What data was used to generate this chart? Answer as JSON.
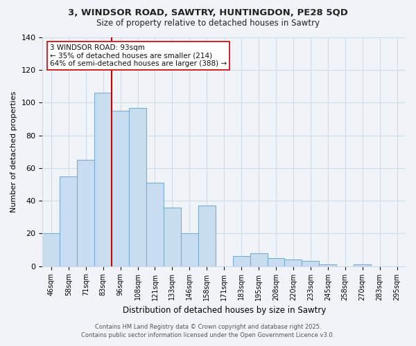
{
  "title_line1": "3, WINDSOR ROAD, SAWTRY, HUNTINGDON, PE28 5QD",
  "title_line2": "Size of property relative to detached houses in Sawtry",
  "xlabel": "Distribution of detached houses by size in Sawtry",
  "ylabel": "Number of detached properties",
  "bar_labels": [
    "46sqm",
    "58sqm",
    "71sqm",
    "83sqm",
    "96sqm",
    "108sqm",
    "121sqm",
    "133sqm",
    "146sqm",
    "158sqm",
    "171sqm",
    "183sqm",
    "195sqm",
    "208sqm",
    "220sqm",
    "233sqm",
    "245sqm",
    "258sqm",
    "270sqm",
    "283sqm",
    "295sqm"
  ],
  "bar_values": [
    20,
    55,
    65,
    106,
    95,
    97,
    51,
    36,
    20,
    37,
    0,
    6,
    8,
    5,
    4,
    3,
    1,
    0,
    1,
    0,
    0
  ],
  "bar_color": "#c8ddf0",
  "bar_edge_color": "#7aaecf",
  "grid_color": "#d0dce8",
  "vline_x": 4.0,
  "vline_color": "#cc0000",
  "annotation_text": "3 WINDSOR ROAD: 93sqm\n← 35% of detached houses are smaller (214)\n64% of semi-detached houses are larger (388) →",
  "annotation_box_color": "#ffffff",
  "annotation_box_edge": "#cc0000",
  "ylim": [
    0,
    140
  ],
  "yticks": [
    0,
    20,
    40,
    60,
    80,
    100,
    120,
    140
  ],
  "footer_line1": "Contains HM Land Registry data © Crown copyright and database right 2025.",
  "footer_line2": "Contains public sector information licensed under the Open Government Licence v3.0.",
  "bg_color": "#f0f4f8"
}
